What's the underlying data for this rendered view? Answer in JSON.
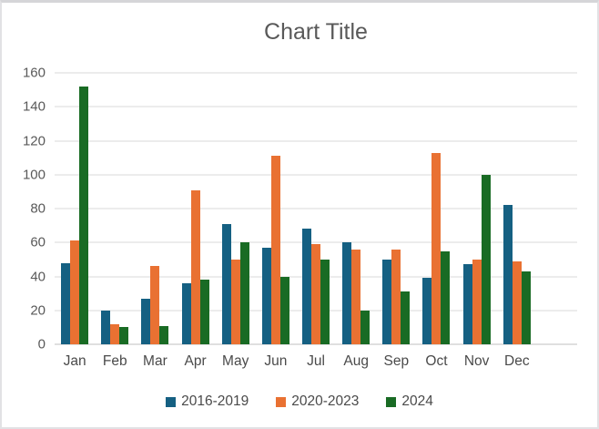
{
  "chart_data": {
    "type": "bar",
    "title": "Chart Title",
    "xlabel": "",
    "ylabel": "",
    "categories": [
      "Jan",
      "Feb",
      "Mar",
      "Apr",
      "May",
      "Jun",
      "Jul",
      "Aug",
      "Sep",
      "Oct",
      "Nov",
      "Dec"
    ],
    "series": [
      {
        "name": "2016-2019",
        "color": "#156082",
        "values": [
          48,
          20,
          27,
          36,
          71,
          57,
          68,
          60,
          50,
          39,
          47,
          82
        ]
      },
      {
        "name": "2020-2023",
        "color": "#E97132",
        "values": [
          61,
          12,
          46,
          91,
          50,
          111,
          59,
          56,
          56,
          113,
          50,
          49
        ]
      },
      {
        "name": "2024",
        "color": "#196B24",
        "values": [
          152,
          10,
          11,
          38,
          60,
          40,
          50,
          20,
          31,
          55,
          100,
          43
        ]
      }
    ],
    "ylim": [
      0,
      160
    ],
    "yticks": [
      0,
      20,
      40,
      60,
      80,
      100,
      120,
      140,
      160
    ],
    "grid": true,
    "legend_position": "bottom",
    "empty_trailing_slots": 1
  },
  "styles": {
    "title_color": "#595959",
    "axis_text_color": "#595959",
    "gridline_color": "#D9D9D9",
    "axis_line_color": "#BFBFBF",
    "background": "#FFFFFF"
  }
}
